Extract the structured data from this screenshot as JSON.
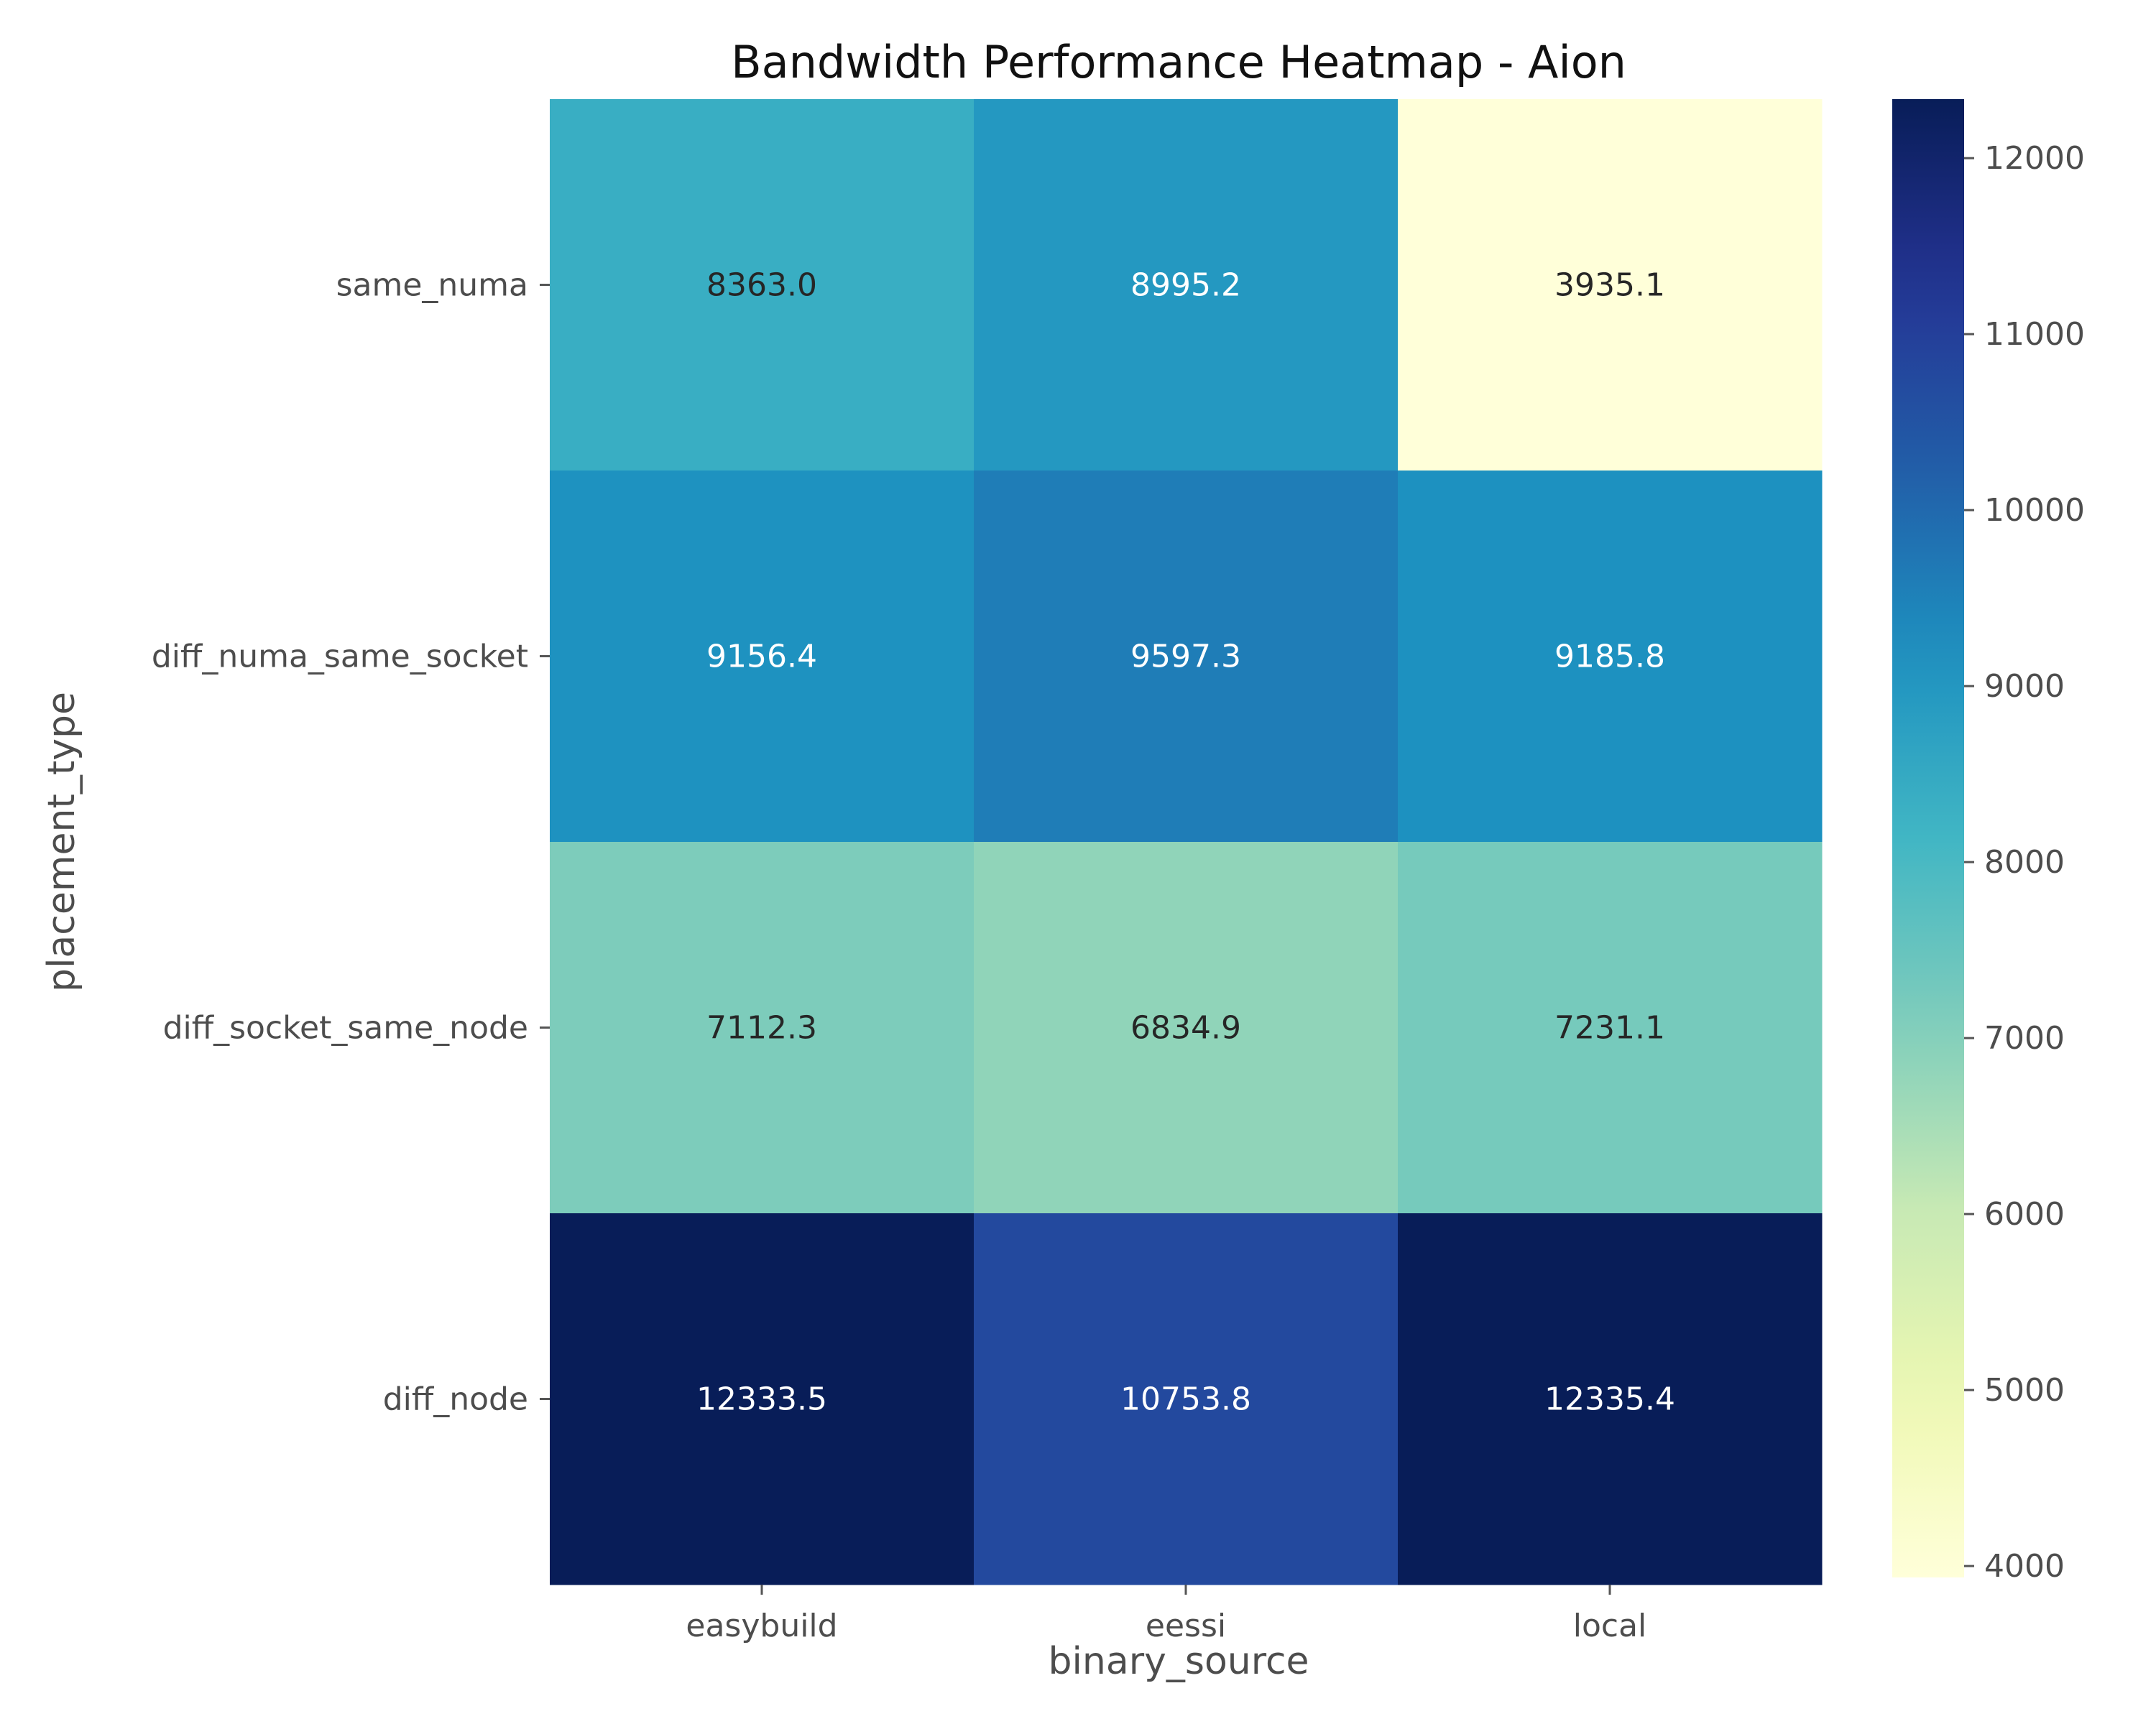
{
  "chart_data": {
    "type": "heatmap",
    "title": "Bandwidth Performance Heatmap - Aion",
    "xlabel": "binary_source",
    "ylabel": "placement_type",
    "x_categories": [
      "easybuild",
      "eessi",
      "local"
    ],
    "y_categories": [
      "same_numa",
      "diff_numa_same_socket",
      "diff_socket_same_node",
      "diff_node"
    ],
    "values": [
      [
        8363.0,
        8995.2,
        3935.1
      ],
      [
        9156.4,
        9597.3,
        9185.8
      ],
      [
        7112.3,
        6834.9,
        7231.1
      ],
      [
        12333.5,
        10753.8,
        12335.4
      ]
    ],
    "value_labels": [
      [
        "8363.0",
        "8995.2",
        "3935.1"
      ],
      [
        "9156.4",
        "9597.3",
        "9185.8"
      ],
      [
        "7112.3",
        "6834.9",
        "7231.1"
      ],
      [
        "12333.5",
        "10753.8",
        "12335.4"
      ]
    ],
    "colorbar": {
      "colormap": "YlGnBu",
      "range": [
        3935.1,
        12335.4
      ],
      "ticks": [
        "4000",
        "5000",
        "6000",
        "7000",
        "8000",
        "9000",
        "10000",
        "11000",
        "12000"
      ]
    },
    "grid": false
  }
}
